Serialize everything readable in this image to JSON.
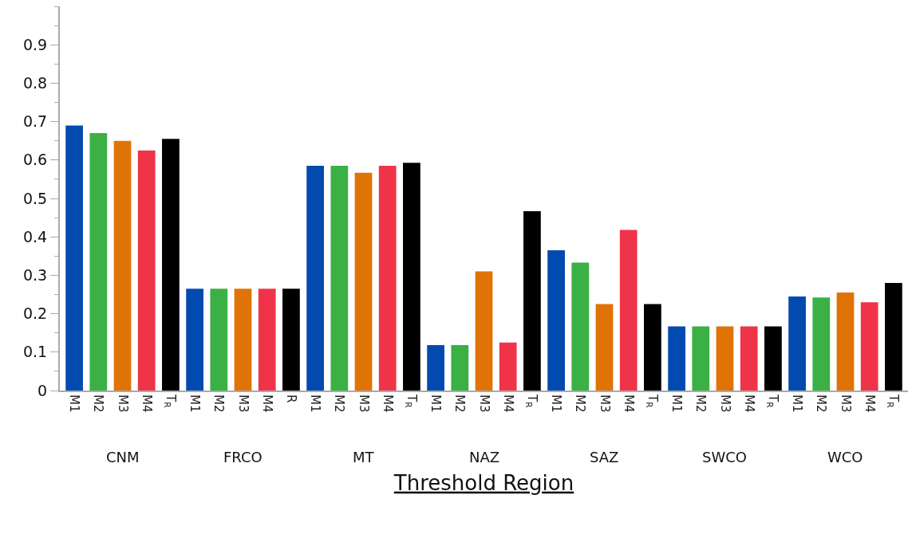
{
  "chart_data": {
    "type": "bar",
    "xlabel": "Threshold Region",
    "categories": [
      "M1",
      "M2",
      "M3",
      "M4",
      "T$_{R}$",
      "M1",
      "M2",
      "M3",
      "M4",
      "R",
      "M1",
      "M2",
      "M3",
      "M4",
      "T$_{R}$",
      "M1",
      "M2",
      "M3",
      "M4",
      "T$_{R}$",
      "M1",
      "M2",
      "M3",
      "M4",
      "T$_{R}$",
      "M1",
      "M2",
      "M3",
      "M4",
      "T$_{R}$",
      "M1",
      "M2",
      "M3",
      "M4",
      "T$_{R}$"
    ],
    "values": [
      0.69,
      0.67,
      0.65,
      0.625,
      0.655,
      0.265,
      0.265,
      0.265,
      0.265,
      0.265,
      0.585,
      0.585,
      0.567,
      0.585,
      0.593,
      0.118,
      0.118,
      0.31,
      0.125,
      0.467,
      0.365,
      0.333,
      0.225,
      0.418,
      0.225,
      0.167,
      0.167,
      0.167,
      0.167,
      0.167,
      0.245,
      0.242,
      0.255,
      0.23,
      0.28
    ],
    "colors": [
      "#034ab0",
      "#3ab045",
      "#e07306",
      "#ef344a",
      "#000000",
      "#034ab0",
      "#3ab045",
      "#e07306",
      "#ef344a",
      "#000000",
      "#034ab0",
      "#3ab045",
      "#e07306",
      "#ef344a",
      "#000000",
      "#034ab0",
      "#3ab045",
      "#e07306",
      "#ef344a",
      "#000000",
      "#034ab0",
      "#3ab045",
      "#e07306",
      "#ef344a",
      "#000000",
      "#034ab0",
      "#3ab045",
      "#e07306",
      "#ef344a",
      "#000000",
      "#034ab0",
      "#3ab045",
      "#e07306",
      "#ef344a",
      "#000000"
    ],
    "annotations": [
      "CNM",
      "FRCO",
      "MT",
      "NAZ",
      "SAZ",
      "SWCO",
      "WCO"
    ],
    "ylim": [
      0,
      1
    ],
    "yticks": [
      0,
      0.1,
      0.2,
      0.3,
      0.4,
      0.5,
      0.6,
      0.7,
      0.8,
      0.9
    ]
  }
}
